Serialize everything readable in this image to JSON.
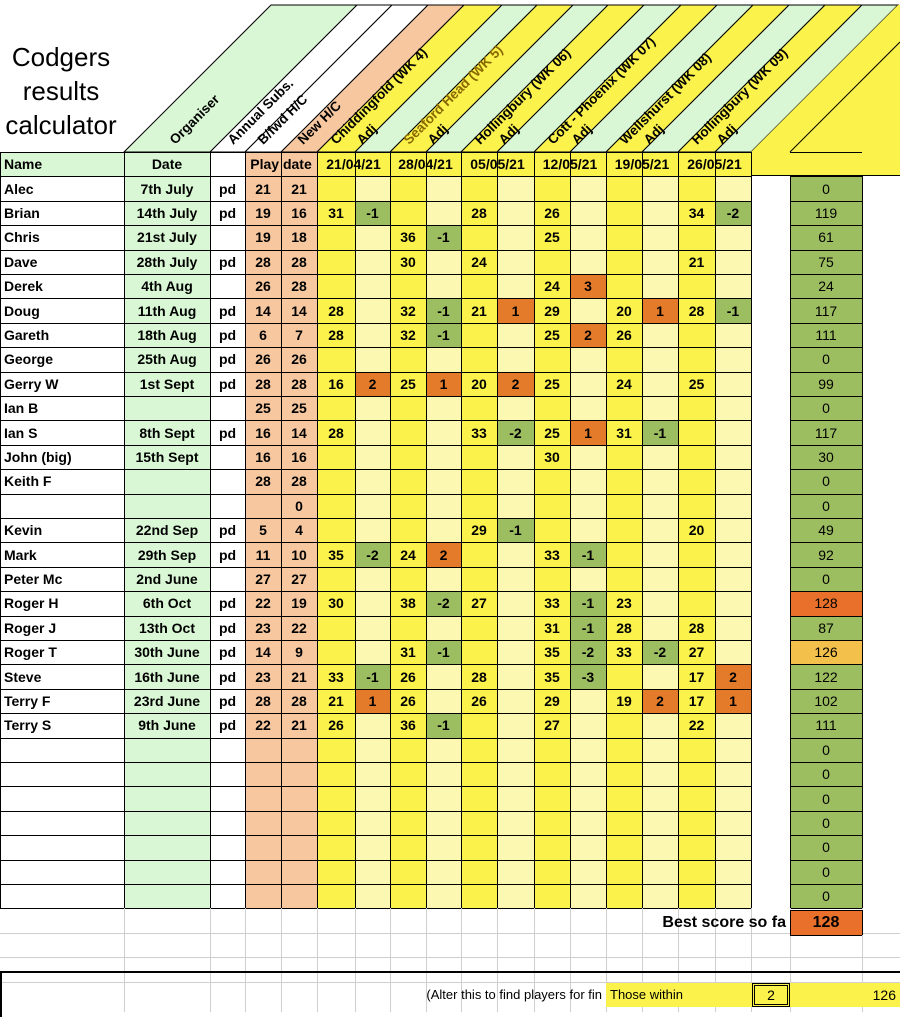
{
  "title": [
    "Codgers",
    "results",
    "calculator"
  ],
  "headers": {
    "organiser": "Organiser",
    "annual_subs": "Annual Subs.",
    "bfwd": "B/fwd H/C",
    "new_hc": "New H/C",
    "name": "Name",
    "date": "Date",
    "play_date": "Play date",
    "courses": [
      "Chiddingfold (WK 4)",
      "Seaford Head (WK 5)",
      "Hollingbury (WK 06)",
      "Cott - Phoenix (WK 07)",
      "Wellshurst (WK 08)",
      "Hollingbury (WK 09)"
    ],
    "adj": "Adj",
    "dates": [
      "21/04/21",
      "28/04/21",
      "05/05/21",
      "12/05/21",
      "19/05/21",
      "26/05/21"
    ]
  },
  "rows": [
    {
      "name": "Alec",
      "date": "7th July",
      "paid": "pd",
      "bfwd": "21",
      "newhc": "21",
      "scores": [
        "",
        "",
        "",
        "",
        "",
        "",
        "",
        "",
        "",
        "",
        "",
        ""
      ],
      "total": "0"
    },
    {
      "name": "Brian",
      "date": "14th July",
      "paid": "pd",
      "bfwd": "19",
      "newhc": "16",
      "scores": [
        "31",
        "-1",
        "",
        "",
        "28",
        "",
        "26",
        "",
        "",
        "",
        "34",
        "-2"
      ],
      "total": "119"
    },
    {
      "name": "Chris",
      "date": "21st July",
      "paid": "",
      "bfwd": "19",
      "newhc": "18",
      "scores": [
        "",
        "",
        "36",
        "-1",
        "",
        "",
        "25",
        "",
        "",
        "",
        "",
        ""
      ],
      "total": "61"
    },
    {
      "name": "Dave",
      "date": "28th July",
      "paid": "pd",
      "bfwd": "28",
      "newhc": "28",
      "scores": [
        "",
        "",
        "30",
        "",
        "24",
        "",
        "",
        "",
        "",
        "",
        "21",
        ""
      ],
      "total": "75"
    },
    {
      "name": "Derek",
      "date": "4th Aug",
      "paid": "",
      "bfwd": "26",
      "newhc": "28",
      "scores": [
        "",
        "",
        "",
        "",
        "",
        "",
        "24",
        "3",
        "",
        "",
        "",
        ""
      ],
      "total": "24"
    },
    {
      "name": "Doug",
      "date": "11th Aug",
      "paid": "pd",
      "bfwd": "14",
      "newhc": "14",
      "scores": [
        "28",
        "",
        "32",
        "-1",
        "21",
        "1",
        "29",
        "",
        "20",
        "1",
        "28",
        "-1"
      ],
      "total": "117"
    },
    {
      "name": "Gareth",
      "date": "18th Aug",
      "paid": "pd",
      "bfwd": "6",
      "newhc": "7",
      "scores": [
        "28",
        "",
        "32",
        "-1",
        "",
        "",
        "25",
        "2",
        "26",
        "",
        "",
        ""
      ],
      "total": "111"
    },
    {
      "name": "George",
      "date": "25th Aug",
      "paid": "pd",
      "bfwd": "26",
      "newhc": "26",
      "scores": [
        "",
        "",
        "",
        "",
        "",
        "",
        "",
        "",
        "",
        "",
        "",
        ""
      ],
      "total": "0"
    },
    {
      "name": "Gerry W",
      "date": "1st Sept",
      "paid": "pd",
      "bfwd": "28",
      "newhc": "28",
      "scores": [
        "16",
        "2",
        "25",
        "1",
        "20",
        "2",
        "25",
        "",
        "24",
        "",
        "25",
        ""
      ],
      "total": "99"
    },
    {
      "name": "Ian B",
      "date": "",
      "paid": "",
      "bfwd": "25",
      "newhc": "25",
      "scores": [
        "",
        "",
        "",
        "",
        "",
        "",
        "",
        "",
        "",
        "",
        "",
        ""
      ],
      "total": "0"
    },
    {
      "name": "Ian S",
      "date": "8th Sept",
      "paid": "pd",
      "bfwd": "16",
      "newhc": "14",
      "scores": [
        "28",
        "",
        "",
        "",
        "33",
        "-2",
        "25",
        "1",
        "31",
        "-1",
        "",
        ""
      ],
      "total": "117"
    },
    {
      "name": "John (big)",
      "date": "15th Sept",
      "paid": "",
      "bfwd": "16",
      "newhc": "16",
      "scores": [
        "",
        "",
        "",
        "",
        "",
        "",
        "30",
        "",
        "",
        "",
        "",
        ""
      ],
      "total": "30"
    },
    {
      "name": "Keith F",
      "date": "",
      "paid": "",
      "bfwd": "28",
      "newhc": "28",
      "scores": [
        "",
        "",
        "",
        "",
        "",
        "",
        "",
        "",
        "",
        "",
        "",
        ""
      ],
      "total": "0"
    },
    {
      "name": "",
      "date": "",
      "paid": "",
      "bfwd": "",
      "newhc": "0",
      "scores": [
        "",
        "",
        "",
        "",
        "",
        "",
        "",
        "",
        "",
        "",
        "",
        ""
      ],
      "total": "0"
    },
    {
      "name": "Kevin",
      "date": "22nd Sep",
      "paid": "pd",
      "bfwd": "5",
      "newhc": "4",
      "scores": [
        "",
        "",
        "",
        "",
        "29",
        "-1",
        "",
        "",
        "",
        "",
        "20",
        ""
      ],
      "total": "49"
    },
    {
      "name": "Mark",
      "date": "29th Sep",
      "paid": "pd",
      "bfwd": "11",
      "newhc": "10",
      "scores": [
        "35",
        "-2",
        "24",
        "2",
        "",
        "",
        "33",
        "-1",
        "",
        "",
        "",
        ""
      ],
      "total": "92"
    },
    {
      "name": "Peter Mc",
      "date": "2nd June",
      "paid": "",
      "bfwd": "27",
      "newhc": "27",
      "scores": [
        "",
        "",
        "",
        "",
        "",
        "",
        "",
        "",
        "",
        "",
        "",
        ""
      ],
      "total": "0"
    },
    {
      "name": "Roger H",
      "date": "6th Oct",
      "paid": "pd",
      "bfwd": "22",
      "newhc": "19",
      "scores": [
        "30",
        "",
        "38",
        "-2",
        "27",
        "",
        "33",
        "-1",
        "23",
        "",
        "",
        ""
      ],
      "total": "128"
    },
    {
      "name": "Roger J",
      "date": "13th Oct",
      "paid": "pd",
      "bfwd": "23",
      "newhc": "22",
      "scores": [
        "",
        "",
        "",
        "",
        "",
        "",
        "31",
        "-1",
        "28",
        "",
        "28",
        ""
      ],
      "total": "87"
    },
    {
      "name": "Roger T",
      "date": "30th June",
      "paid": "pd",
      "bfwd": "14",
      "newhc": "9",
      "scores": [
        "",
        "",
        "31",
        "-1",
        "",
        "",
        "35",
        "-2",
        "33",
        "-2",
        "27",
        ""
      ],
      "total": "126"
    },
    {
      "name": "Steve",
      "date": "16th June",
      "paid": "pd",
      "bfwd": "23",
      "newhc": "21",
      "scores": [
        "33",
        "-1",
        "26",
        "",
        "28",
        "",
        "35",
        "-3",
        "",
        "",
        "17",
        "2"
      ],
      "total": "122"
    },
    {
      "name": "Terry F",
      "date": "23rd June",
      "paid": "pd",
      "bfwd": "28",
      "newhc": "28",
      "scores": [
        "21",
        "1",
        "26",
        "",
        "26",
        "",
        "29",
        "",
        "19",
        "2",
        "17",
        "1"
      ],
      "total": "102"
    },
    {
      "name": "Terry S",
      "date": "9th June",
      "paid": "pd",
      "bfwd": "22",
      "newhc": "21",
      "scores": [
        "26",
        "",
        "36",
        "-1",
        "",
        "",
        "27",
        "",
        "",
        "",
        "22",
        ""
      ],
      "total": "111"
    }
  ],
  "extra_totals": [
    "0",
    "0",
    "0",
    "0",
    "0",
    "0",
    "0"
  ],
  "best_label": "Best score so fa",
  "best_value": "128",
  "footer": {
    "note": "(Alter this to find players for fin",
    "within_label": "Those within",
    "within_value": "2",
    "threshold": "126"
  },
  "colors": {
    "green": "#d9f7d4",
    "peach": "#f7c8a0",
    "yellow": "#fbf24c",
    "pale_yellow": "#fcf8b2",
    "adj_positive": "#e37b2a",
    "adj_negative": "#9cbd60",
    "total_green": "#9cbd60",
    "best_orange": "#e8702a",
    "second_orange": "#f4c04c"
  }
}
